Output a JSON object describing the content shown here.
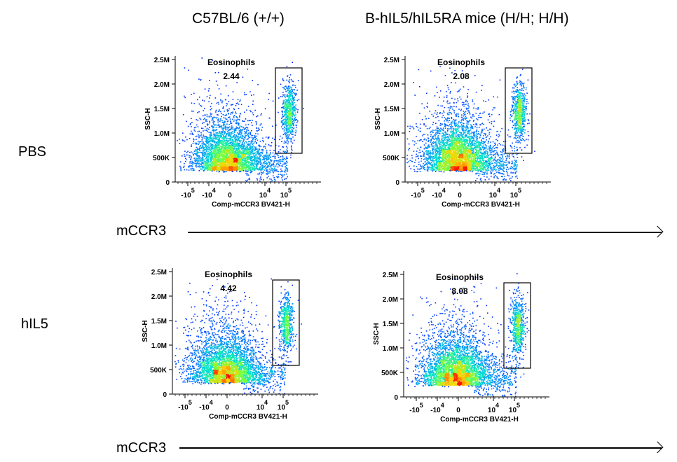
{
  "headers": {
    "col1": "C57BL/6 (+/+)",
    "col2": "B-hIL5/hIL5RA mice (H/H; H/H)",
    "row1": "PBS",
    "row2": "hIL5"
  },
  "arrow_label": "mCCR3",
  "chart_data": [
    {
      "type": "scatter",
      "row": "PBS",
      "column": "C57BL/6 (+/+)",
      "ylabel": "SSC-H",
      "xlabel": "Comp-mCCR3 BV421-H",
      "yticks": [
        "0",
        "500K",
        "1.0M",
        "1.5M",
        "2.0M",
        "2.5M"
      ],
      "xticks": [
        "-10^5",
        "-10^4",
        "0",
        "10^4",
        "10^5"
      ],
      "gate": {
        "name": "Eosinophils",
        "percent": "2.44"
      }
    },
    {
      "type": "scatter",
      "row": "PBS",
      "column": "B-hIL5/hIL5RA mice (H/H; H/H)",
      "ylabel": "SSC-H",
      "xlabel": "Comp-mCCR3 BV421-H",
      "yticks": [
        "0",
        "500K",
        "1.0M",
        "1.5M",
        "2.0M",
        "2.5M"
      ],
      "xticks": [
        "-10^5",
        "-10^4",
        "0",
        "10^4",
        "10^5"
      ],
      "gate": {
        "name": "Eosinophils",
        "percent": "2.08"
      }
    },
    {
      "type": "scatter",
      "row": "hIL5",
      "column": "C57BL/6 (+/+)",
      "ylabel": "SSC-H",
      "xlabel": "Comp-mCCR3 BV421-H",
      "yticks": [
        "0",
        "500K",
        "1.0M",
        "1.5M",
        "2.0M",
        "2.5M"
      ],
      "xticks": [
        "-10^5",
        "-10^4",
        "0",
        "10^4",
        "10^5"
      ],
      "gate": {
        "name": "Eosinophils",
        "percent": "4.42"
      }
    },
    {
      "type": "scatter",
      "row": "hIL5",
      "column": "B-hIL5/hIL5RA mice (H/H; H/H)",
      "ylabel": "SSC-H",
      "xlabel": "Comp-mCCR3 BV421-H",
      "yticks": [
        "0",
        "500K",
        "1.0M",
        "1.5M",
        "2.0M",
        "2.5M"
      ],
      "xticks": [
        "-10^5",
        "-10^4",
        "0",
        "10^4",
        "10^5"
      ],
      "gate": {
        "name": "Eosinophils",
        "percent": "8.08"
      }
    }
  ]
}
